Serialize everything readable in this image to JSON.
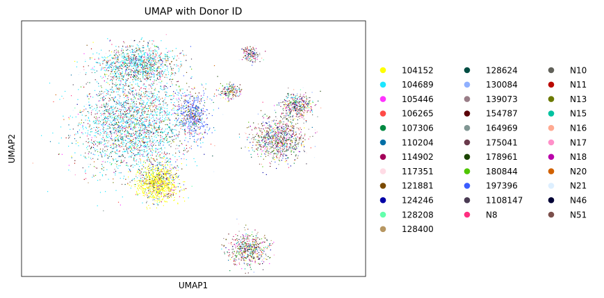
{
  "chart_data": {
    "type": "scatter",
    "title": "UMAP with Donor ID",
    "xlabel": "UMAP1",
    "ylabel": "UMAP2",
    "ticks": false,
    "grid": false,
    "legend_placement": "right, outside plot, 3 columns",
    "clusters": [
      {
        "name": "large left cluster",
        "center": [
          -3.0,
          1.5
        ],
        "spread": [
          3.0,
          2.6
        ]
      },
      {
        "name": "upper left lobe",
        "center": [
          -2.8,
          4.6
        ],
        "spread": [
          2.1,
          1.0
        ]
      },
      {
        "name": "yellow dense region",
        "center": [
          -1.7,
          -1.4
        ],
        "spread": [
          1.1,
          0.9
        ]
      },
      {
        "name": "right middle cluster",
        "center": [
          4.8,
          0.8
        ],
        "spread": [
          1.4,
          1.1
        ]
      },
      {
        "name": "right upper arm",
        "center": [
          5.8,
          2.5
        ],
        "spread": [
          0.9,
          0.6
        ]
      },
      {
        "name": "bottom cluster",
        "center": [
          3.2,
          -4.8
        ],
        "spread": [
          1.1,
          0.8
        ]
      },
      {
        "name": "small top cluster",
        "center": [
          3.3,
          5.1
        ],
        "spread": [
          0.5,
          0.4
        ]
      },
      {
        "name": "small upper-middle cluster",
        "center": [
          2.2,
          3.2
        ],
        "spread": [
          0.6,
          0.35
        ]
      },
      {
        "name": "blue bridge region",
        "center": [
          0.2,
          2.0
        ],
        "spread": [
          0.8,
          1.2
        ]
      }
    ],
    "series": [
      {
        "name": "104152",
        "color": "#ffff00"
      },
      {
        "name": "104689",
        "color": "#1ce6ff"
      },
      {
        "name": "105446",
        "color": "#ff34ff"
      },
      {
        "name": "106265",
        "color": "#ff4a46"
      },
      {
        "name": "107306",
        "color": "#008941"
      },
      {
        "name": "110204",
        "color": "#006fa6"
      },
      {
        "name": "114902",
        "color": "#a30059"
      },
      {
        "name": "117351",
        "color": "#ffdbe5"
      },
      {
        "name": "121881",
        "color": "#7a4900"
      },
      {
        "name": "124246",
        "color": "#0000a6"
      },
      {
        "name": "128208",
        "color": "#63ffac"
      },
      {
        "name": "128400",
        "color": "#b79762"
      },
      {
        "name": "128624",
        "color": "#004d43"
      },
      {
        "name": "130084",
        "color": "#8fb0ff"
      },
      {
        "name": "139073",
        "color": "#997d87"
      },
      {
        "name": "154787",
        "color": "#5a0007"
      },
      {
        "name": "164969",
        "color": "#809693"
      },
      {
        "name": "175041",
        "color": "#6a3a4c"
      },
      {
        "name": "178961",
        "color": "#1b4400"
      },
      {
        "name": "180844",
        "color": "#4fc601"
      },
      {
        "name": "197396",
        "color": "#3b5dff"
      },
      {
        "name": "1108147",
        "color": "#4a3b53"
      },
      {
        "name": "N8",
        "color": "#ff2f80"
      },
      {
        "name": "N10",
        "color": "#61615a"
      },
      {
        "name": "N11",
        "color": "#ba0900"
      },
      {
        "name": "N13",
        "color": "#6b7900"
      },
      {
        "name": "N15",
        "color": "#00c2a0"
      },
      {
        "name": "N16",
        "color": "#ffaa92"
      },
      {
        "name": "N17",
        "color": "#ff90c9"
      },
      {
        "name": "N18",
        "color": "#b903aa"
      },
      {
        "name": "N20",
        "color": "#d16100"
      },
      {
        "name": "N21",
        "color": "#ddefff"
      },
      {
        "name": "N46",
        "color": "#000035"
      },
      {
        "name": "N51",
        "color": "#7b4f4b"
      }
    ]
  }
}
